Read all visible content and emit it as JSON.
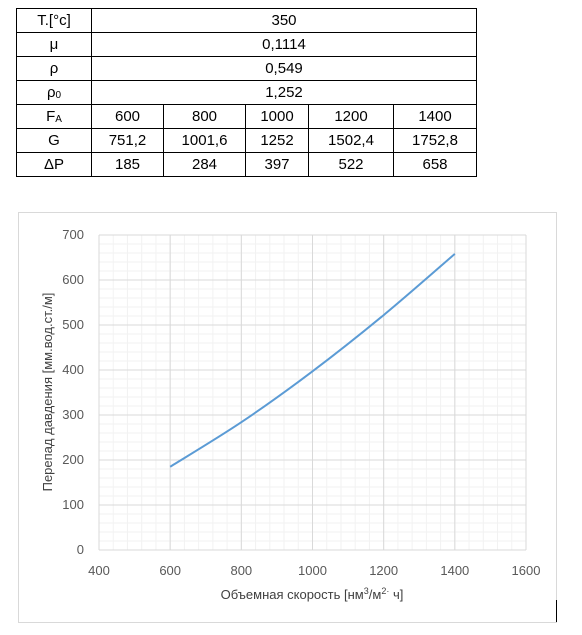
{
  "table": {
    "rows": [
      {
        "label": "T.[°c]",
        "value": "350"
      },
      {
        "label": "μ",
        "value": "0,1114"
      },
      {
        "label": "ρ",
        "value": "0,549"
      },
      {
        "label": "ρ",
        "label_sub": "0",
        "value": "1,252"
      }
    ],
    "fa": {
      "label": "F",
      "label_sub": "A",
      "values": [
        "600",
        "800",
        "1000",
        "1200",
        "1400"
      ]
    },
    "g": {
      "label": "G",
      "values": [
        "751,2",
        "1001,6",
        "1252",
        "1502,4",
        "1752,8"
      ]
    },
    "dp": {
      "label": "ΔP",
      "values": [
        "185",
        "284",
        "397",
        "522",
        "658"
      ]
    }
  },
  "chart_data": {
    "type": "line",
    "x": [
      600,
      800,
      1000,
      1200,
      1400
    ],
    "series": [
      {
        "values": [
          185,
          284,
          397,
          522,
          658
        ],
        "color": "#5b9bd5"
      }
    ],
    "xlim": [
      400,
      1600
    ],
    "ylim": [
      0,
      700
    ],
    "x_ticks": [
      400,
      600,
      800,
      1000,
      1200,
      1400,
      1600
    ],
    "y_ticks": [
      0,
      100,
      200,
      300,
      400,
      500,
      600,
      700
    ],
    "xlabel": "Объемная скорость [нм",
    "xlabel_sup": "3",
    "xlabel_mid": "/м",
    "xlabel_sup2": "2·",
    "xlabel_end": " ч]",
    "ylabel": "Перепад давдения [мм.вод.ст./м]",
    "grid": true,
    "minor_grid": true
  }
}
